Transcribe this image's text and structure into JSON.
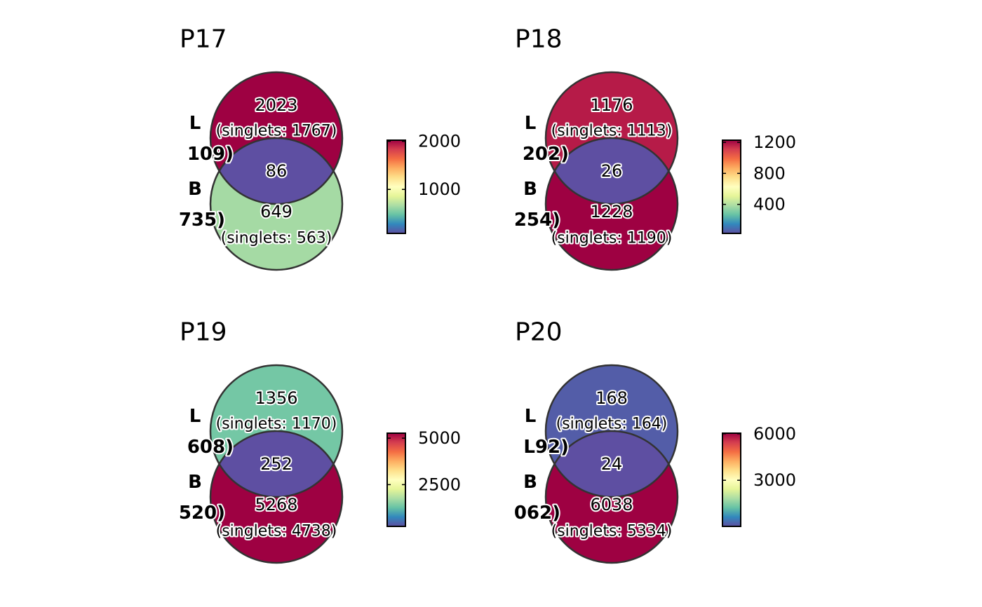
{
  "colorscale": {
    "name": "Spectral",
    "stops": [
      "#5e4fa2",
      "#3288bd",
      "#66c2a5",
      "#abdda4",
      "#e6f598",
      "#ffffbf",
      "#fee08b",
      "#fdae61",
      "#f46d43",
      "#d53e4f",
      "#9e0142"
    ]
  },
  "chart_data": [
    {
      "type": "venn",
      "title": "P17",
      "sets": [
        {
          "letter": "L",
          "total_label": "109)",
          "count": "2023",
          "singlets_label": "(singlets: 1767)",
          "value": 2023
        },
        {
          "letter": "B",
          "total_label": "735)",
          "count": "649",
          "singlets_label": "(singlets: 563)",
          "value": 649
        }
      ],
      "intersection": {
        "count": "86",
        "value": 86
      },
      "colorbar": {
        "min": 86,
        "max": 2023,
        "ticks": [
          {
            "value": 1000,
            "label": "1000"
          },
          {
            "value": 2000,
            "label": "2000"
          }
        ]
      }
    },
    {
      "type": "venn",
      "title": "P18",
      "sets": [
        {
          "letter": "L",
          "total_label": "202)",
          "count": "1176",
          "singlets_label": "(singlets: 1113)",
          "value": 1176
        },
        {
          "letter": "B",
          "total_label": "254)",
          "count": "1228",
          "singlets_label": "(singlets: 1190)",
          "value": 1228
        }
      ],
      "intersection": {
        "count": "26",
        "value": 26
      },
      "colorbar": {
        "min": 26,
        "max": 1228,
        "ticks": [
          {
            "value": 400,
            "label": "400"
          },
          {
            "value": 800,
            "label": "800"
          },
          {
            "value": 1200,
            "label": "1200"
          }
        ]
      }
    },
    {
      "type": "venn",
      "title": "P19",
      "sets": [
        {
          "letter": "L",
          "total_label": "608)",
          "count": "1356",
          "singlets_label": "(singlets: 1170)",
          "value": 1356
        },
        {
          "letter": "B",
          "total_label": "520)",
          "count": "5268",
          "singlets_label": "(singlets: 4738)",
          "value": 5268
        }
      ],
      "intersection": {
        "count": "252",
        "value": 252
      },
      "colorbar": {
        "min": 252,
        "max": 5268,
        "ticks": [
          {
            "value": 2500,
            "label": "2500"
          },
          {
            "value": 5000,
            "label": "5000"
          }
        ]
      }
    },
    {
      "type": "venn",
      "title": "P20",
      "sets": [
        {
          "letter": "L",
          "total_label": "L92)",
          "count": "168",
          "singlets_label": "(singlets: 164)",
          "value": 168
        },
        {
          "letter": "B",
          "total_label": "062)",
          "count": "6038",
          "singlets_label": "(singlets: 5334)",
          "value": 6038
        }
      ],
      "intersection": {
        "count": "24",
        "value": 24
      },
      "colorbar": {
        "min": 24,
        "max": 6038,
        "ticks": [
          {
            "value": 3000,
            "label": "3000"
          },
          {
            "value": 6000,
            "label": "6000"
          }
        ]
      }
    }
  ]
}
